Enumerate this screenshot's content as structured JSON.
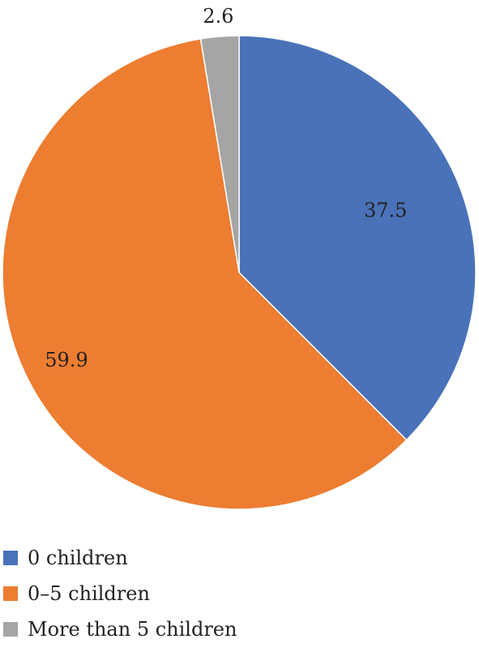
{
  "chart_data": {
    "type": "pie",
    "title": "",
    "slices": [
      {
        "label": "0 children",
        "value": 37.5,
        "value_label": "37.5",
        "color": "#4A72B8"
      },
      {
        "label": "0–5 children",
        "value": 59.9,
        "value_label": "59.9",
        "color": "#ED7D31"
      },
      {
        "label": "More than 5 children",
        "value": 2.6,
        "value_label": "2.6",
        "color": "#A5A5A5"
      }
    ],
    "start_angle_deg": 0,
    "direction": "clockwise",
    "legend_position": "bottom-left"
  },
  "legend": {
    "items": [
      {
        "label": "0 children",
        "color": "#4A72B8"
      },
      {
        "label": "0–5 children",
        "color": "#ED7D31"
      },
      {
        "label": "More than 5 children",
        "color": "#A5A5A5"
      }
    ]
  }
}
